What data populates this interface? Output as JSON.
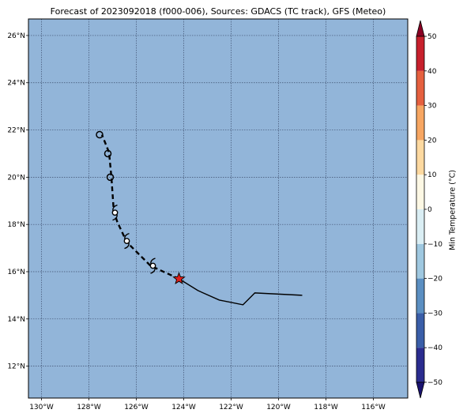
{
  "title": "Forecast of 2023092018 (f000-006), Sources: GDACS (TC track), GFS (Meteo)",
  "map": {
    "background_color": "#92b5d9",
    "lon_range": [
      -130.55,
      -114.55
    ],
    "lat_range": [
      10.65,
      26.7
    ],
    "lon_ticks": [
      {
        "value": -130,
        "label": "130°W"
      },
      {
        "value": -128,
        "label": "128°W"
      },
      {
        "value": -126,
        "label": "126°W"
      },
      {
        "value": -124,
        "label": "124°W"
      },
      {
        "value": -122,
        "label": "122°W"
      },
      {
        "value": -120,
        "label": "120°W"
      },
      {
        "value": -118,
        "label": "118°W"
      },
      {
        "value": -116,
        "label": "116°W"
      }
    ],
    "lat_ticks": [
      {
        "value": 12,
        "label": "12°N"
      },
      {
        "value": 14,
        "label": "14°N"
      },
      {
        "value": 16,
        "label": "16°N"
      },
      {
        "value": 18,
        "label": "18°N"
      },
      {
        "value": 20,
        "label": "20°N"
      },
      {
        "value": 22,
        "label": "22°N"
      },
      {
        "value": 24,
        "label": "24°N"
      },
      {
        "value": 26,
        "label": "26°N"
      }
    ],
    "grid": true
  },
  "track": {
    "past": [
      [
        -119.0,
        15.0
      ],
      [
        -121.0,
        15.1
      ],
      [
        -121.5,
        14.6
      ],
      [
        -122.5,
        14.8
      ],
      [
        -123.4,
        15.2
      ],
      [
        -124.2,
        15.7
      ]
    ],
    "forecast": [
      [
        -124.2,
        15.7
      ],
      [
        -125.4,
        16.25
      ],
      [
        -126.4,
        17.25
      ],
      [
        -126.8,
        18.1
      ],
      [
        -126.95,
        18.55
      ],
      [
        -127.05,
        20.0
      ],
      [
        -127.15,
        21.05
      ],
      [
        -127.45,
        21.8
      ]
    ],
    "current_position": [
      -124.2,
      15.7
    ],
    "markers": [
      {
        "lon": -125.3,
        "lat": 16.25,
        "symbol": "tropical-storm"
      },
      {
        "lon": -126.4,
        "lat": 17.3,
        "symbol": "tropical-storm"
      },
      {
        "lon": -126.9,
        "lat": 18.5,
        "symbol": "tropical-storm"
      },
      {
        "lon": -127.1,
        "lat": 20.0,
        "symbol": "tropical-depression"
      },
      {
        "lon": -127.2,
        "lat": 21.0,
        "symbol": "tropical-depression"
      },
      {
        "lon": -127.55,
        "lat": 21.8,
        "symbol": "tropical-depression"
      }
    ],
    "colors": {
      "line": "#000000",
      "star": "#e0201b"
    }
  },
  "colorbar": {
    "label": "Min Temperature (°C)",
    "ticks": [
      {
        "value": 50,
        "label": "50"
      },
      {
        "value": 40,
        "label": "40"
      },
      {
        "value": 30,
        "label": "30"
      },
      {
        "value": 20,
        "label": "20"
      },
      {
        "value": 10,
        "label": "10"
      },
      {
        "value": 0,
        "label": "0"
      },
      {
        "value": -10,
        "label": "−10"
      },
      {
        "value": -20,
        "label": "−20"
      },
      {
        "value": -30,
        "label": "−30"
      },
      {
        "value": -40,
        "label": "−40"
      },
      {
        "value": -50,
        "label": "−50"
      }
    ],
    "bands": [
      {
        "from": -50,
        "to": -40,
        "color": "#2b2c8f"
      },
      {
        "from": -40,
        "to": -30,
        "color": "#3a5ea8"
      },
      {
        "from": -30,
        "to": -20,
        "color": "#5b8fc2"
      },
      {
        "from": -20,
        "to": -10,
        "color": "#9fc8e0"
      },
      {
        "from": -10,
        "to": 0,
        "color": "#daeef4"
      },
      {
        "from": 0,
        "to": 10,
        "color": "#fdf8e4"
      },
      {
        "from": 10,
        "to": 20,
        "color": "#fdd9a0"
      },
      {
        "from": 20,
        "to": 30,
        "color": "#f7a662"
      },
      {
        "from": 30,
        "to": 40,
        "color": "#e5603f"
      },
      {
        "from": 40,
        "to": 50,
        "color": "#c7202c"
      }
    ],
    "under_color": "#1a1370",
    "over_color": "#8a0023"
  }
}
